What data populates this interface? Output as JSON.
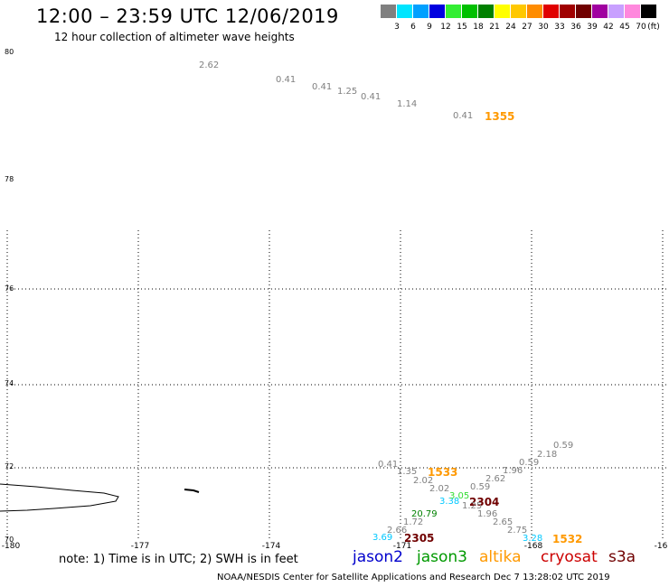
{
  "header": {
    "title": "12:00 – 23:59 UTC 12/06/2019",
    "subtitle": "12 hour collection of altimeter wave heights"
  },
  "colorbar": {
    "unit": "(ft)",
    "labels": [
      "3",
      "6",
      "9",
      "12",
      "15",
      "18",
      "21",
      "24",
      "27",
      "30",
      "33",
      "36",
      "39",
      "42",
      "45",
      "70"
    ],
    "colors": [
      "#808080",
      "#00e5ff",
      "#00a0ff",
      "#0000e0",
      "#33ee33",
      "#00c000",
      "#008000",
      "#ffff00",
      "#ffc800",
      "#ff8c00",
      "#e00000",
      "#a00000",
      "#700000",
      "#a000a0",
      "#c8a0ff",
      "#ff88dd",
      "#000000"
    ]
  },
  "axes": {
    "lat_labels": [
      "80",
      "78",
      "76",
      "74",
      "72",
      "70"
    ],
    "lon_labels": [
      "-180",
      "-177",
      "-174",
      "-171",
      "-168",
      "-16"
    ]
  },
  "observations": [
    {
      "text": "2.62",
      "color": "#808080"
    },
    {
      "text": "0.41",
      "color": "#808080"
    },
    {
      "text": "0.41",
      "color": "#808080"
    },
    {
      "text": "1.25",
      "color": "#808080"
    },
    {
      "text": "0.41",
      "color": "#808080"
    },
    {
      "text": "1.14",
      "color": "#808080"
    },
    {
      "text": "0.41",
      "color": "#808080"
    },
    {
      "text": "1355",
      "color": "#ff9900"
    },
    {
      "text": "0.59",
      "color": "#808080"
    },
    {
      "text": "2.18",
      "color": "#808080"
    },
    {
      "text": "0.59",
      "color": "#808080"
    },
    {
      "text": "1.96",
      "color": "#808080"
    },
    {
      "text": "0.41",
      "color": "#808080"
    },
    {
      "text": "1.35",
      "color": "#808080"
    },
    {
      "text": "1533",
      "color": "#ff9900"
    },
    {
      "text": "2.62",
      "color": "#808080"
    },
    {
      "text": "2.02",
      "color": "#808080"
    },
    {
      "text": "2.02",
      "color": "#808080"
    },
    {
      "text": "0.59",
      "color": "#808080"
    },
    {
      "text": "3.38",
      "color": "#00c8ff"
    },
    {
      "text": "3.05",
      "color": "#33dd33"
    },
    {
      "text": "2304",
      "color": "#700000"
    },
    {
      "text": "1.25",
      "color": "#808080"
    },
    {
      "text": "20.79",
      "color": "#008000"
    },
    {
      "text": "1.96",
      "color": "#808080"
    },
    {
      "text": "1.72",
      "color": "#808080"
    },
    {
      "text": "2.65",
      "color": "#808080"
    },
    {
      "text": "2.66",
      "color": "#808080"
    },
    {
      "text": "2.75",
      "color": "#808080"
    },
    {
      "text": "3.69",
      "color": "#00c8ff"
    },
    {
      "text": "2305",
      "color": "#700000"
    },
    {
      "text": "3.28",
      "color": "#00c8ff"
    },
    {
      "text": "1532",
      "color": "#ff9900"
    }
  ],
  "footer": {
    "note": "note: 1) Time is in UTC; 2) SWH is in feet",
    "satellites": [
      {
        "name": "jason2",
        "color": "#0000cc"
      },
      {
        "name": "jason3",
        "color": "#009900"
      },
      {
        "name": "altika",
        "color": "#ff9900"
      },
      {
        "name": "cryosat",
        "color": "#cc0000"
      },
      {
        "name": "s3a",
        "color": "#700000"
      }
    ],
    "credit": "NOAA/NESDIS Center for Satellite Applications and Research   Dec  7 13:28:02 UTC 2019"
  }
}
